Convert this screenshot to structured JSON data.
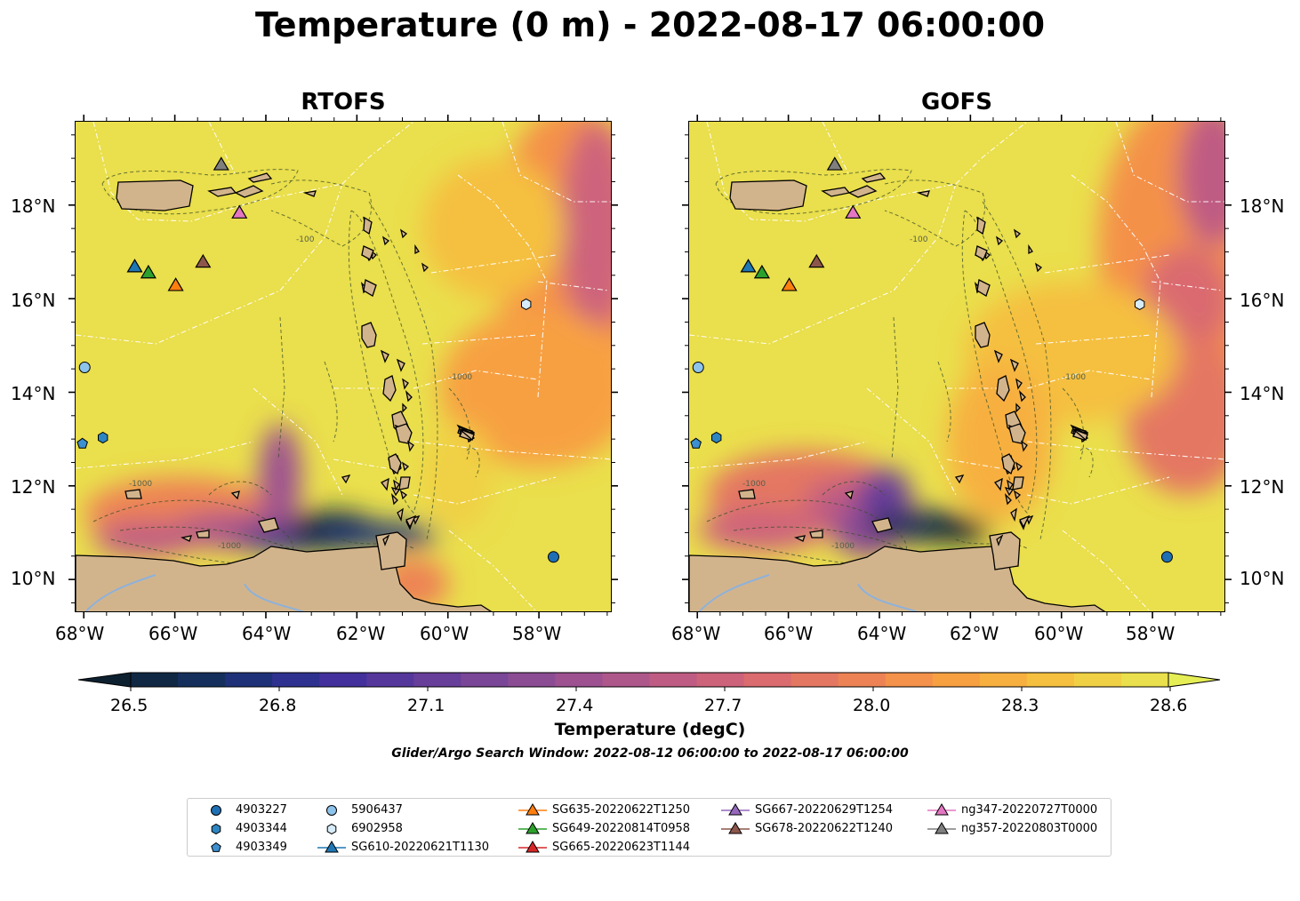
{
  "title": "Temperature (0 m) - 2022-08-17 06:00:00",
  "panels": [
    {
      "name": "RTOFS"
    },
    {
      "name": "GOFS"
    }
  ],
  "axes": {
    "lon_labels": [
      "68°W",
      "66°W",
      "64°W",
      "62°W",
      "60°W",
      "58°W"
    ],
    "lat_labels": [
      "18°N",
      "16°N",
      "14°N",
      "12°N",
      "10°N"
    ]
  },
  "colorbar": {
    "ticks": [
      "26.5",
      "26.8",
      "27.1",
      "27.4",
      "27.7",
      "28.0",
      "28.3",
      "28.6"
    ],
    "label": "Temperature (degC)",
    "colors": [
      "#0d2030",
      "#102843",
      "#152f5d",
      "#1e3178",
      "#2e318f",
      "#43309c",
      "#55379c",
      "#673e9a",
      "#7a4697",
      "#8c4c94",
      "#9d5190",
      "#ae578a",
      "#bf5c83",
      "#cd637b",
      "#da6b6f",
      "#e47762",
      "#ed8355",
      "#f4914a",
      "#f7a042",
      "#f7b03f",
      "#f5c03f",
      "#f0d045",
      "#eadf4c",
      "#e6ee55"
    ]
  },
  "search_window": "Glider/Argo Search Window: 2022-08-12 06:00:00 to 2022-08-17 06:00:00",
  "contour_labels": [
    "-100",
    "-1000"
  ],
  "legend": [
    {
      "label": "4903227",
      "marker": "circle",
      "color": "#1f6fb4"
    },
    {
      "label": "4903344",
      "marker": "hexagon",
      "color": "#2e86c1"
    },
    {
      "label": "4903349",
      "marker": "pentagon",
      "color": "#3c8fd0"
    },
    {
      "label": "5906437",
      "marker": "circle",
      "color": "#8ec3ec"
    },
    {
      "label": "6902958",
      "marker": "hexagon",
      "color": "#d6ecfa"
    },
    {
      "label": "SG610-20220621T1130",
      "marker": "triangle",
      "color": "#1f77b4"
    },
    {
      "label": "SG635-20220622T1250",
      "marker": "triangle",
      "color": "#ff7f0e"
    },
    {
      "label": "SG649-20220814T0958",
      "marker": "triangle",
      "color": "#2ca02c"
    },
    {
      "label": "SG665-20220623T1144",
      "marker": "triangle",
      "color": "#d62728"
    },
    {
      "label": "SG667-20220629T1254",
      "marker": "triangle",
      "color": "#9467bd"
    },
    {
      "label": "SG678-20220622T1240",
      "marker": "triangle",
      "color": "#8c564b"
    },
    {
      "label": "ng347-20220727T0000",
      "marker": "triangle",
      "color": "#e377c2"
    },
    {
      "label": "ng357-20220803T0000",
      "marker": "triangle",
      "color": "#7f7f7f"
    }
  ],
  "observations": [
    {
      "id": "4903227",
      "lon": -57.7,
      "lat": 10.5
    },
    {
      "id": "4903344",
      "lon": -67.6,
      "lat": 13.05
    },
    {
      "id": "4903349",
      "lon": -68.05,
      "lat": 12.92
    },
    {
      "id": "5906437",
      "lon": -68.0,
      "lat": 14.55
    },
    {
      "id": "6902958",
      "lon": -58.3,
      "lat": 15.9
    },
    {
      "id": "SG610-20220621T1130",
      "lon": -66.9,
      "lat": 16.7
    },
    {
      "id": "SG635-20220622T1250",
      "lon": -66.0,
      "lat": 16.3
    },
    {
      "id": "SG649-20220814T0958",
      "lon": -66.6,
      "lat": 16.57
    },
    {
      "id": "SG678-20220622T1240",
      "lon": -65.4,
      "lat": 16.8
    },
    {
      "id": "ng347-20220727T0000",
      "lon": -64.6,
      "lat": 17.85
    },
    {
      "id": "ng357-20220803T0000",
      "lon": -65.0,
      "lat": 18.88
    }
  ]
}
